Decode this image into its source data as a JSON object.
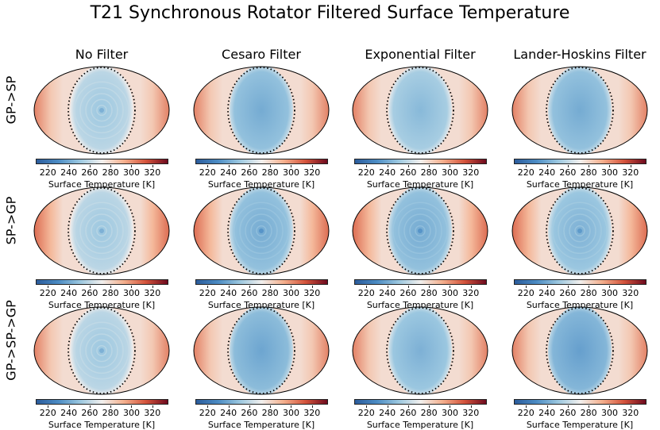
{
  "figure": {
    "title": "T21 Synchronous Rotator Filtered Surface Temperature"
  },
  "columns": [
    "No Filter",
    "Cesaro Filter",
    "Exponential Filter",
    "Lander-Hoskins Filter"
  ],
  "rows": [
    "GP->SP",
    "SP->GP",
    "GP->SP->GP"
  ],
  "colorbar": {
    "label": "Surface Temperature [K]",
    "ticks": [
      "220",
      "240",
      "260",
      "280",
      "300",
      "320"
    ],
    "range": [
      208,
      335
    ],
    "colormap": "RdBu_r",
    "colors": [
      "#2b5c9c",
      "#4c8cc4",
      "#9cc8e0",
      "#f2f0ee",
      "#f4b08e",
      "#d4543c",
      "#6e0a1e"
    ]
  },
  "chart_data": {
    "type": "heatmap",
    "title": "T21 Synchronous Rotator Filtered Surface Temperature",
    "projection": "mollweide",
    "colorbar_label": "Surface Temperature [K]",
    "colorbar_range": [
      208,
      335
    ],
    "colorbar_ticks": [
      220,
      240,
      260,
      280,
      300,
      320
    ],
    "columns": [
      "No Filter",
      "Cesaro Filter",
      "Exponential Filter",
      "Lander-Hoskins Filter"
    ],
    "rows": [
      "GP->SP",
      "SP->GP",
      "GP->SP->GP"
    ],
    "panels": [
      {
        "row": "GP->SP",
        "column": "No Filter",
        "dayside_min_K": 250,
        "nightside_max_K": 305,
        "ringing": true
      },
      {
        "row": "GP->SP",
        "column": "Cesaro Filter",
        "dayside_min_K": 240,
        "nightside_max_K": 305,
        "ringing": false
      },
      {
        "row": "GP->SP",
        "column": "Exponential Filter",
        "dayside_min_K": 245,
        "nightside_max_K": 305,
        "ringing": false
      },
      {
        "row": "GP->SP",
        "column": "Lander-Hoskins Filter",
        "dayside_min_K": 240,
        "nightside_max_K": 305,
        "ringing": false
      },
      {
        "row": "SP->GP",
        "column": "No Filter",
        "dayside_min_K": 250,
        "nightside_max_K": 310,
        "ringing": true
      },
      {
        "row": "SP->GP",
        "column": "Cesaro Filter",
        "dayside_min_K": 240,
        "nightside_max_K": 310,
        "ringing": true
      },
      {
        "row": "SP->GP",
        "column": "Exponential Filter",
        "dayside_min_K": 240,
        "nightside_max_K": 310,
        "ringing": true
      },
      {
        "row": "SP->GP",
        "column": "Lander-Hoskins Filter",
        "dayside_min_K": 242,
        "nightside_max_K": 310,
        "ringing": true
      },
      {
        "row": "GP->SP->GP",
        "column": "No Filter",
        "dayside_min_K": 250,
        "nightside_max_K": 305,
        "ringing": true
      },
      {
        "row": "GP->SP->GP",
        "column": "Cesaro Filter",
        "dayside_min_K": 238,
        "nightside_max_K": 305,
        "ringing": false
      },
      {
        "row": "GP->SP->GP",
        "column": "Exponential Filter",
        "dayside_min_K": 242,
        "nightside_max_K": 305,
        "ringing": false
      },
      {
        "row": "GP->SP->GP",
        "column": "Lander-Hoskins Filter",
        "dayside_min_K": 236,
        "nightside_max_K": 305,
        "ringing": false
      }
    ]
  }
}
